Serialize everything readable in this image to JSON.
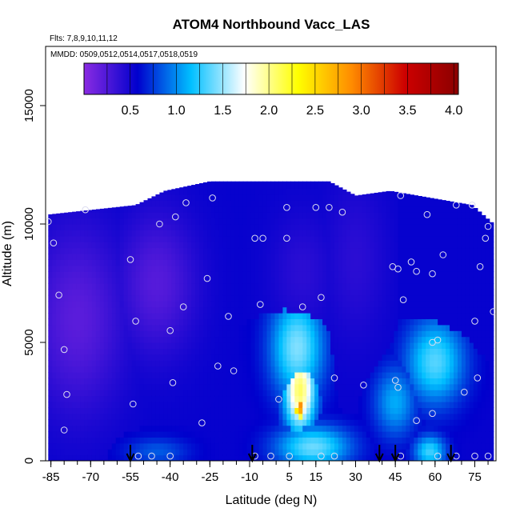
{
  "chart_data": {
    "type": "heatmap",
    "title": "ATOM4 Northbound Vacc_LAS",
    "annotations": [
      "Flts: 7,8,9,10,11,12",
      "MMDD: 0509,0512,0514,0517,0518,0519"
    ],
    "xlabel": "Latitude (deg N)",
    "ylabel": "Altitude (m)",
    "xlim": [
      -87,
      83
    ],
    "ylim": [
      0,
      17500
    ],
    "x_ticks": [
      -85,
      -70,
      -55,
      -40,
      -25,
      -10,
      5,
      15,
      30,
      45,
      60,
      75
    ],
    "x_tick_labels": [
      "-85",
      "-70",
      "-55",
      "-40",
      "-25",
      "-10",
      "5",
      "15",
      "30",
      "45",
      "60",
      "75"
    ],
    "y_ticks": [
      0,
      5000,
      10000,
      15000
    ],
    "y_tick_labels": [
      "0",
      "5000",
      "10000",
      "15000"
    ],
    "colorbar": {
      "range": [
        0,
        4.05
      ],
      "ticks": [
        0.5,
        1.0,
        1.5,
        2.0,
        2.5,
        3.0,
        3.5,
        4.0
      ],
      "tick_labels": [
        "0.5",
        "1.0",
        "1.5",
        "2.0",
        "2.5",
        "3.0",
        "3.5",
        "4.0"
      ],
      "colors": [
        "#8a2be2",
        "#0000cd",
        "#00bfff",
        "#ffffff",
        "#ffff00",
        "#ff8c00",
        "#cd0000",
        "#8b0000"
      ]
    },
    "field_top_km_by_lat": [
      {
        "lat": -86,
        "top": 10400
      },
      {
        "lat": -53,
        "top": 10800
      },
      {
        "lat": -42,
        "top": 11400
      },
      {
        "lat": -25,
        "top": 11800
      },
      {
        "lat": 20,
        "top": 11800
      },
      {
        "lat": 30,
        "top": 11200
      },
      {
        "lat": 43,
        "top": 11400
      },
      {
        "lat": 74,
        "top": 10800
      },
      {
        "lat": 82,
        "top": 10000
      }
    ],
    "field_blobs": [
      {
        "lat": 9,
        "alt": 2300,
        "value": 2.9,
        "r_lat": 3,
        "r_alt": 700
      },
      {
        "lat": 9,
        "alt": 3000,
        "value": 2.1,
        "r_lat": 6,
        "r_alt": 1800
      },
      {
        "lat": 8,
        "alt": 4800,
        "value": 1.45,
        "r_lat": 10,
        "r_alt": 2200
      },
      {
        "lat": 14,
        "alt": 600,
        "value": 1.4,
        "r_lat": 14,
        "r_alt": 900
      },
      {
        "lat": 60,
        "alt": 4200,
        "value": 1.35,
        "r_lat": 11,
        "r_alt": 1800
      },
      {
        "lat": 58,
        "alt": 400,
        "value": 1.3,
        "r_lat": 6,
        "r_alt": 700
      },
      {
        "lat": 45,
        "alt": 2500,
        "value": 1.1,
        "r_lat": 8,
        "r_alt": 1500
      },
      {
        "lat": -45,
        "alt": 400,
        "value": 0.85,
        "r_lat": 12,
        "r_alt": 600
      },
      {
        "lat": 10,
        "alt": 8000,
        "value": 0.4,
        "r_lat": 12,
        "r_alt": 2500
      },
      {
        "lat": -75,
        "alt": 6000,
        "value": 0.2,
        "r_lat": 18,
        "r_alt": 4000
      },
      {
        "lat": -45,
        "alt": 7500,
        "value": 0.22,
        "r_lat": 15,
        "r_alt": 3000
      },
      {
        "lat": 30,
        "alt": 8500,
        "value": 0.4,
        "r_lat": 12,
        "r_alt": 3500
      },
      {
        "lat": 65,
        "alt": 8500,
        "value": 0.55,
        "r_lat": 14,
        "r_alt": 3000
      }
    ],
    "background_value": 0.55,
    "measurement_points": [
      {
        "lat": -86,
        "alt": 10100
      },
      {
        "lat": -84,
        "alt": 9200
      },
      {
        "lat": -82,
        "alt": 7000
      },
      {
        "lat": -80,
        "alt": 4700
      },
      {
        "lat": -79,
        "alt": 2800
      },
      {
        "lat": -80,
        "alt": 1300
      },
      {
        "lat": -72,
        "alt": 10600
      },
      {
        "lat": -55,
        "alt": 8500
      },
      {
        "lat": -53,
        "alt": 5900
      },
      {
        "lat": -54,
        "alt": 2400
      },
      {
        "lat": -52,
        "alt": 200
      },
      {
        "lat": -47,
        "alt": 200
      },
      {
        "lat": -44,
        "alt": 10000
      },
      {
        "lat": -38,
        "alt": 10300
      },
      {
        "lat": -40,
        "alt": 5500
      },
      {
        "lat": -39,
        "alt": 3300
      },
      {
        "lat": -35,
        "alt": 6500
      },
      {
        "lat": -40,
        "alt": 200
      },
      {
        "lat": -34,
        "alt": 10900
      },
      {
        "lat": -28,
        "alt": 1600
      },
      {
        "lat": -26,
        "alt": 7700
      },
      {
        "lat": -24,
        "alt": 11100
      },
      {
        "lat": -22,
        "alt": 4000
      },
      {
        "lat": -18,
        "alt": 6100
      },
      {
        "lat": -16,
        "alt": 3800
      },
      {
        "lat": -8,
        "alt": 9400
      },
      {
        "lat": -5,
        "alt": 9400
      },
      {
        "lat": -6,
        "alt": 6600
      },
      {
        "lat": -8,
        "alt": 200
      },
      {
        "lat": -2,
        "alt": 200
      },
      {
        "lat": 1,
        "alt": 2600
      },
      {
        "lat": 4,
        "alt": 10700
      },
      {
        "lat": 4,
        "alt": 9400
      },
      {
        "lat": 5,
        "alt": 200
      },
      {
        "lat": 10,
        "alt": 6500
      },
      {
        "lat": 15,
        "alt": 10700
      },
      {
        "lat": 20,
        "alt": 10700
      },
      {
        "lat": 17,
        "alt": 6900
      },
      {
        "lat": 17,
        "alt": 200
      },
      {
        "lat": 22,
        "alt": 3500
      },
      {
        "lat": 22,
        "alt": 200
      },
      {
        "lat": 25,
        "alt": 10500
      },
      {
        "lat": 33,
        "alt": 3200
      },
      {
        "lat": 44,
        "alt": 8200
      },
      {
        "lat": 46,
        "alt": 8100
      },
      {
        "lat": 47,
        "alt": 11200
      },
      {
        "lat": 48,
        "alt": 6800
      },
      {
        "lat": 45,
        "alt": 3400
      },
      {
        "lat": 46,
        "alt": 3100
      },
      {
        "lat": 47,
        "alt": 200
      },
      {
        "lat": 51,
        "alt": 8400
      },
      {
        "lat": 53,
        "alt": 8000
      },
      {
        "lat": 53,
        "alt": 1700
      },
      {
        "lat": 57,
        "alt": 10400
      },
      {
        "lat": 59,
        "alt": 7900
      },
      {
        "lat": 59,
        "alt": 5000
      },
      {
        "lat": 61,
        "alt": 5100
      },
      {
        "lat": 59,
        "alt": 2000
      },
      {
        "lat": 61,
        "alt": 200
      },
      {
        "lat": 63,
        "alt": 8700
      },
      {
        "lat": 68,
        "alt": 10800
      },
      {
        "lat": 68,
        "alt": 200
      },
      {
        "lat": 71,
        "alt": 2900
      },
      {
        "lat": 74,
        "alt": 10800
      },
      {
        "lat": 75,
        "alt": 5900
      },
      {
        "lat": 77,
        "alt": 8200
      },
      {
        "lat": 76,
        "alt": 3500
      },
      {
        "lat": 75,
        "alt": 200
      },
      {
        "lat": 79,
        "alt": 9400
      },
      {
        "lat": 80,
        "alt": 200
      },
      {
        "lat": 82,
        "alt": 6300
      },
      {
        "lat": 80,
        "alt": 9900
      }
    ],
    "arrows_lat": [
      -55,
      -9,
      39,
      45,
      66
    ]
  }
}
